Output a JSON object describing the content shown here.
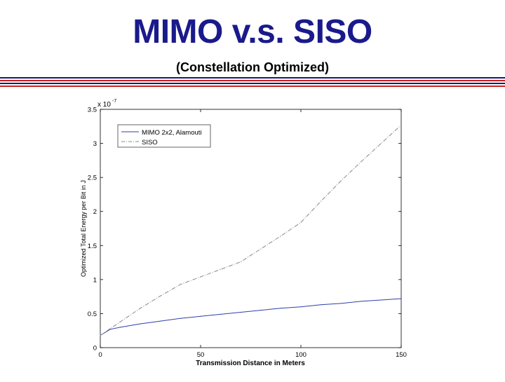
{
  "slide": {
    "title": "MIMO v.s. SISO",
    "subtitle": "(Constellation Optimized)"
  },
  "colors": {
    "title": "#1a1a8c",
    "rule_blue": "#1a1a6e",
    "rule_red": "#cc1f1f",
    "mimo": "#2f3fa8",
    "siso": "#8a8a8a",
    "axes": "#000000"
  },
  "chart_data": {
    "type": "line",
    "title": "",
    "xlabel": "Transmission Distance in Meters",
    "ylabel": "Optimized Total Energy per Bit in J",
    "y_exponent_label": "x 10",
    "y_exponent_power": "-7",
    "xlim": [
      0,
      150
    ],
    "ylim": [
      0,
      3.5
    ],
    "xticks": [
      0,
      50,
      100,
      150
    ],
    "yticks": [
      0,
      0.5,
      1,
      1.5,
      2,
      2.5,
      3,
      3.5
    ],
    "ytick_labels": [
      "0",
      "0.5",
      "1",
      "1.5",
      "2",
      "2.5",
      "3",
      "3.5"
    ],
    "grid": false,
    "legend_position": "top-left",
    "series": [
      {
        "name": "MIMO 2x2, Alamouti",
        "style": "solid",
        "x": [
          0,
          5,
          10,
          20,
          30,
          40,
          50,
          60,
          70,
          80,
          90,
          100,
          110,
          120,
          130,
          140,
          150
        ],
        "y": [
          0.18,
          0.27,
          0.3,
          0.35,
          0.39,
          0.43,
          0.46,
          0.49,
          0.52,
          0.55,
          0.58,
          0.6,
          0.63,
          0.65,
          0.68,
          0.7,
          0.72
        ]
      },
      {
        "name": "SISO",
        "style": "dashdot",
        "x": [
          0,
          5,
          10,
          20,
          30,
          40,
          50,
          60,
          70,
          80,
          90,
          100,
          110,
          120,
          130,
          140,
          150
        ],
        "y": [
          0.18,
          0.28,
          0.38,
          0.58,
          0.76,
          0.93,
          1.04,
          1.15,
          1.26,
          1.45,
          1.64,
          1.84,
          2.15,
          2.45,
          2.73,
          3.0,
          3.27
        ]
      }
    ]
  }
}
